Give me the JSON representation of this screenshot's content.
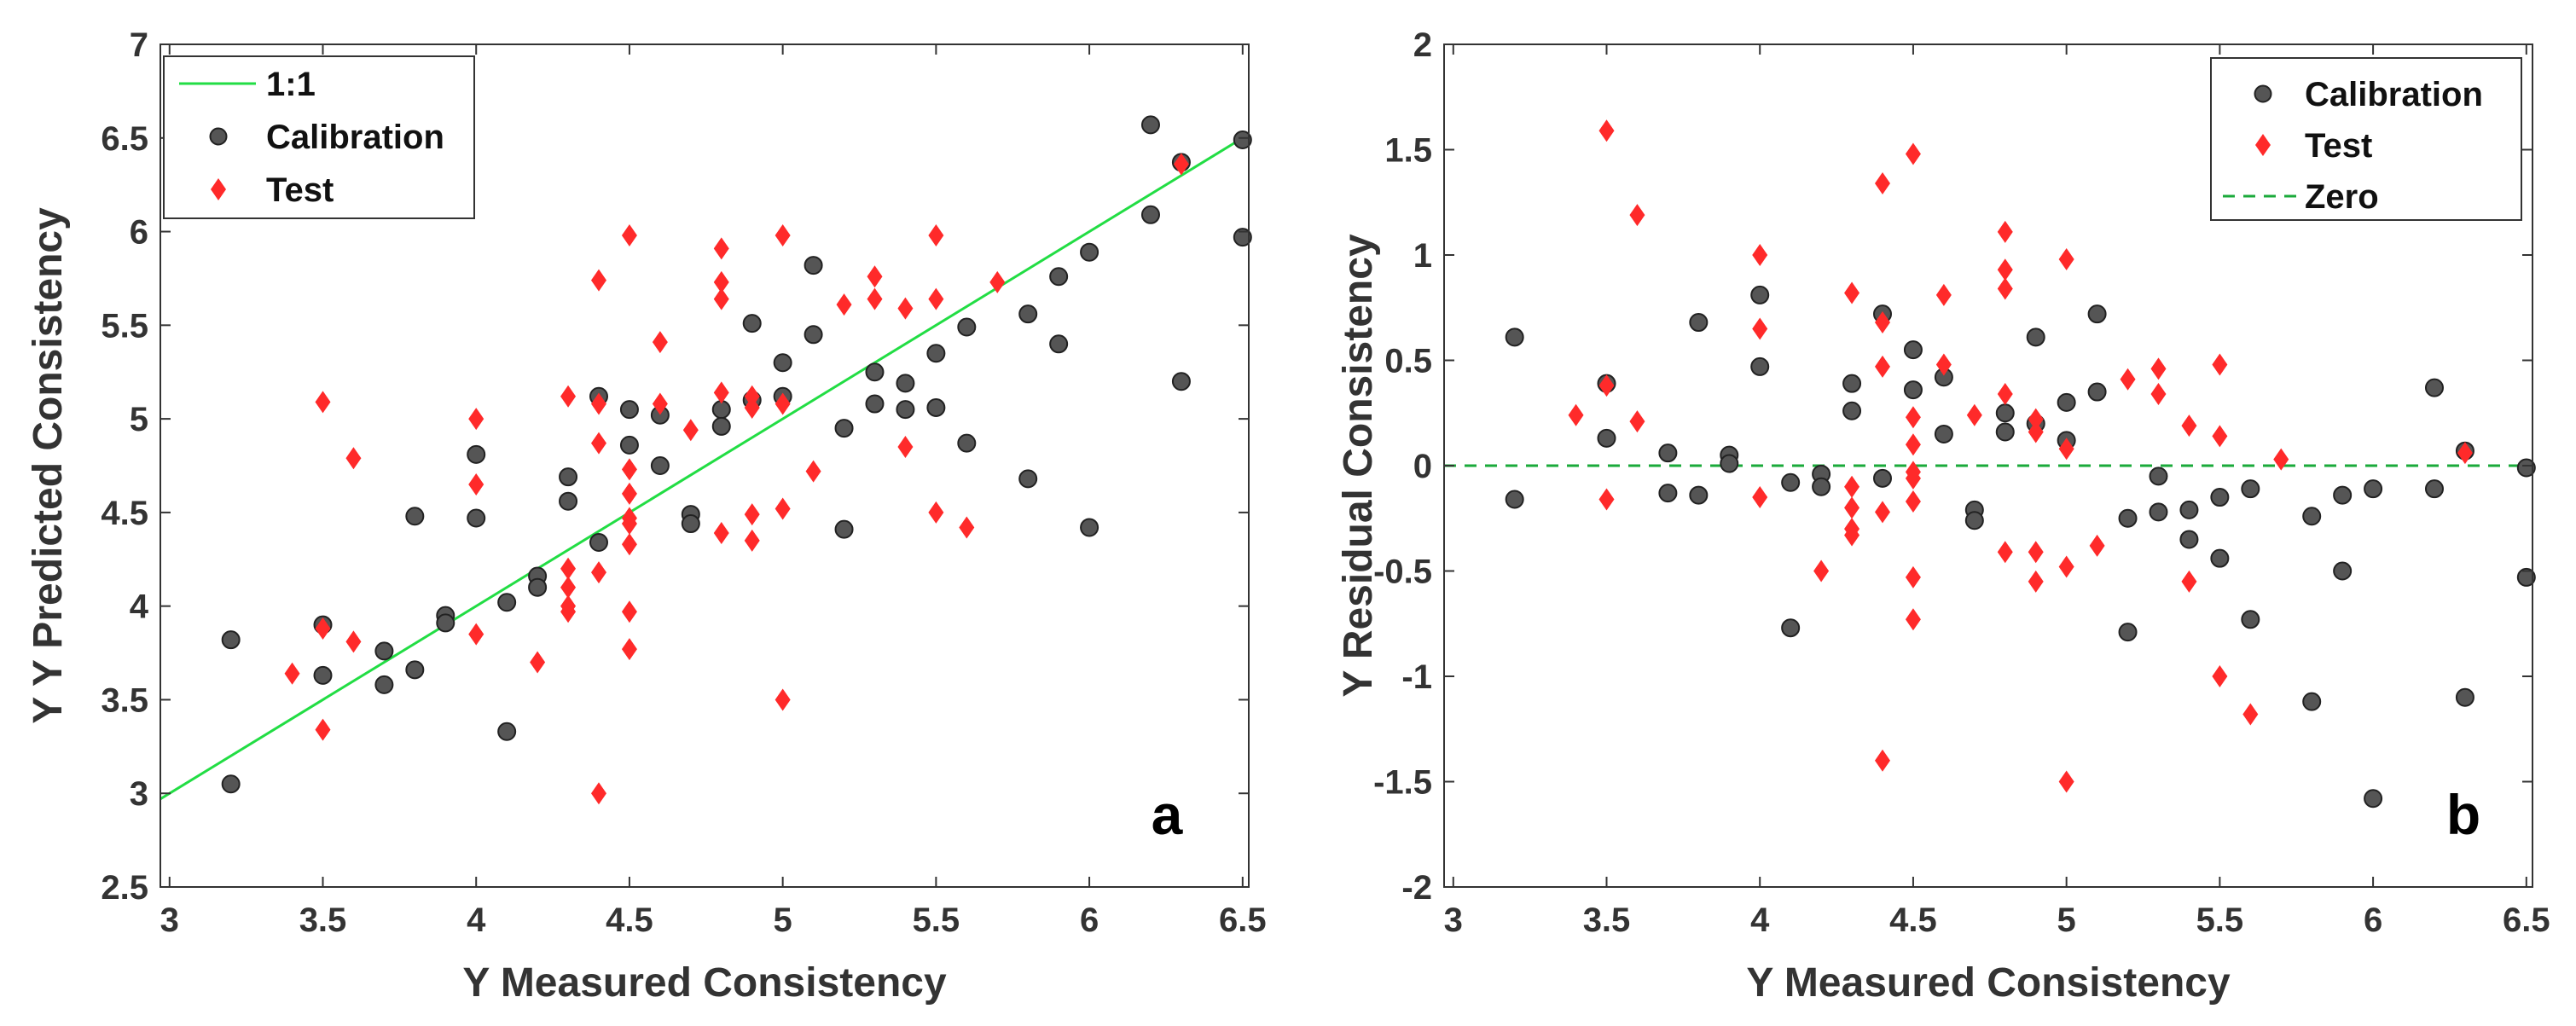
{
  "colors": {
    "calibration": "#555555",
    "calibration_edge": "#222222",
    "test": "#ff2a2a",
    "reference_line": "#22dd44",
    "zero_line": "#1aaa3a",
    "axis": "#333333"
  },
  "chart_data": [
    {
      "type": "scatter",
      "panel_label": "a",
      "xlabel": "Y Measured Consistency",
      "ylabel": "Y Y Predicted Consistency",
      "xlim": [
        2.97,
        6.52
      ],
      "ylim": [
        2.5,
        7
      ],
      "x_ticks": [
        "3",
        "3.5",
        "4",
        "4.5",
        "5",
        "5.5",
        "6",
        "6.5"
      ],
      "y_ticks": [
        "2.5",
        "3",
        "3.5",
        "4",
        "4.5",
        "5",
        "5.5",
        "6",
        "6.5",
        "7"
      ],
      "legend_position": "top-left",
      "legend": {
        "line": "1:1",
        "calibration": "Calibration",
        "test": "Test"
      },
      "reference_line": {
        "name": "1:1",
        "from": [
          2.97,
          2.97
        ],
        "to": [
          6.52,
          6.52
        ]
      },
      "series": [
        {
          "name": "Calibration",
          "points": [
            [
              3.2,
              3.82
            ],
            [
              3.2,
              3.05
            ],
            [
              3.5,
              3.9
            ],
            [
              3.5,
              3.63
            ],
            [
              3.7,
              3.76
            ],
            [
              3.7,
              3.58
            ],
            [
              3.8,
              4.48
            ],
            [
              3.8,
              3.66
            ],
            [
              3.9,
              3.95
            ],
            [
              3.9,
              3.91
            ],
            [
              4.0,
              4.81
            ],
            [
              4.0,
              4.47
            ],
            [
              4.1,
              4.02
            ],
            [
              4.1,
              3.33
            ],
            [
              4.2,
              4.16
            ],
            [
              4.2,
              4.1
            ],
            [
              4.3,
              4.69
            ],
            [
              4.3,
              4.56
            ],
            [
              4.4,
              5.12
            ],
            [
              4.4,
              4.34
            ],
            [
              4.5,
              5.05
            ],
            [
              4.5,
              4.86
            ],
            [
              4.6,
              5.02
            ],
            [
              4.6,
              4.75
            ],
            [
              4.7,
              4.49
            ],
            [
              4.7,
              4.44
            ],
            [
              4.8,
              5.05
            ],
            [
              4.8,
              4.96
            ],
            [
              4.9,
              5.51
            ],
            [
              4.9,
              5.1
            ],
            [
              5.0,
              5.3
            ],
            [
              5.0,
              5.12
            ],
            [
              5.1,
              5.82
            ],
            [
              5.1,
              5.45
            ],
            [
              5.2,
              4.95
            ],
            [
              5.2,
              4.41
            ],
            [
              5.3,
              5.25
            ],
            [
              5.3,
              5.08
            ],
            [
              5.4,
              5.19
            ],
            [
              5.4,
              5.05
            ],
            [
              5.5,
              5.35
            ],
            [
              5.5,
              5.06
            ],
            [
              5.6,
              5.49
            ],
            [
              5.6,
              4.87
            ],
            [
              5.8,
              5.56
            ],
            [
              5.8,
              4.68
            ],
            [
              5.9,
              5.76
            ],
            [
              5.9,
              5.4
            ],
            [
              6.0,
              5.89
            ],
            [
              6.0,
              4.42
            ],
            [
              6.2,
              6.57
            ],
            [
              6.2,
              6.09
            ],
            [
              6.3,
              6.37
            ],
            [
              6.3,
              5.2
            ],
            [
              6.5,
              6.49
            ],
            [
              6.5,
              5.97
            ]
          ]
        },
        {
          "name": "Test",
          "points": [
            [
              3.4,
              3.64
            ],
            [
              3.5,
              5.09
            ],
            [
              3.5,
              3.88
            ],
            [
              3.5,
              3.34
            ],
            [
              3.6,
              4.79
            ],
            [
              3.6,
              3.81
            ],
            [
              4.0,
              5.0
            ],
            [
              4.0,
              4.65
            ],
            [
              4.0,
              3.85
            ],
            [
              4.2,
              3.7
            ],
            [
              4.3,
              5.12
            ],
            [
              4.3,
              4.2
            ],
            [
              4.3,
              4.1
            ],
            [
              4.3,
              4.0
            ],
            [
              4.3,
              3.97
            ],
            [
              4.4,
              5.74
            ],
            [
              4.4,
              5.08
            ],
            [
              4.4,
              4.87
            ],
            [
              4.4,
              4.18
            ],
            [
              4.4,
              3.0
            ],
            [
              4.5,
              5.98
            ],
            [
              4.5,
              4.73
            ],
            [
              4.5,
              4.6
            ],
            [
              4.5,
              4.47
            ],
            [
              4.5,
              4.44
            ],
            [
              4.5,
              4.33
            ],
            [
              4.5,
              3.97
            ],
            [
              4.5,
              3.77
            ],
            [
              4.6,
              5.41
            ],
            [
              4.6,
              5.08
            ],
            [
              4.7,
              4.94
            ],
            [
              4.8,
              5.91
            ],
            [
              4.8,
              5.73
            ],
            [
              4.8,
              5.64
            ],
            [
              4.8,
              5.14
            ],
            [
              4.8,
              4.39
            ],
            [
              4.9,
              5.12
            ],
            [
              4.9,
              5.06
            ],
            [
              4.9,
              4.49
            ],
            [
              4.9,
              4.35
            ],
            [
              5.0,
              5.98
            ],
            [
              5.0,
              5.08
            ],
            [
              5.0,
              4.52
            ],
            [
              5.0,
              3.5
            ],
            [
              5.1,
              4.72
            ],
            [
              5.2,
              5.61
            ],
            [
              5.3,
              5.76
            ],
            [
              5.3,
              5.64
            ],
            [
              5.4,
              5.59
            ],
            [
              5.4,
              4.85
            ],
            [
              5.5,
              5.98
            ],
            [
              5.5,
              5.64
            ],
            [
              5.5,
              4.5
            ],
            [
              5.6,
              4.42
            ],
            [
              5.7,
              5.73
            ],
            [
              6.3,
              6.36
            ]
          ]
        }
      ]
    },
    {
      "type": "scatter",
      "panel_label": "b",
      "xlabel": "Y Measured Consistency",
      "ylabel": "Y Residual Consistency",
      "xlim": [
        2.97,
        6.52
      ],
      "ylim": [
        -2,
        2
      ],
      "x_ticks": [
        "3",
        "3.5",
        "4",
        "4.5",
        "5",
        "5.5",
        "6",
        "6.5"
      ],
      "y_ticks": [
        "-2",
        "-1.5",
        "-1",
        "-0.5",
        "0",
        "0.5",
        "1",
        "1.5",
        "2"
      ],
      "legend_position": "top-right",
      "legend": {
        "calibration": "Calibration",
        "test": "Test",
        "line": "Zero"
      },
      "reference_line": {
        "name": "Zero",
        "y": 0
      },
      "series": [
        {
          "name": "Calibration",
          "points": [
            [
              3.2,
              0.61
            ],
            [
              3.2,
              -0.16
            ],
            [
              3.5,
              0.39
            ],
            [
              3.5,
              0.13
            ],
            [
              3.7,
              0.06
            ],
            [
              3.7,
              -0.13
            ],
            [
              3.8,
              0.68
            ],
            [
              3.8,
              -0.14
            ],
            [
              3.9,
              0.05
            ],
            [
              3.9,
              0.01
            ],
            [
              4.0,
              0.81
            ],
            [
              4.0,
              0.47
            ],
            [
              4.1,
              -0.08
            ],
            [
              4.1,
              -0.77
            ],
            [
              4.2,
              -0.04
            ],
            [
              4.2,
              -0.1
            ],
            [
              4.3,
              0.39
            ],
            [
              4.3,
              0.26
            ],
            [
              4.4,
              0.72
            ],
            [
              4.4,
              -0.06
            ],
            [
              4.5,
              0.55
            ],
            [
              4.5,
              0.36
            ],
            [
              4.6,
              0.42
            ],
            [
              4.6,
              0.15
            ],
            [
              4.7,
              -0.21
            ],
            [
              4.7,
              -0.26
            ],
            [
              4.8,
              0.25
            ],
            [
              4.8,
              0.16
            ],
            [
              4.9,
              0.61
            ],
            [
              4.9,
              0.2
            ],
            [
              5.0,
              0.3
            ],
            [
              5.0,
              0.12
            ],
            [
              5.1,
              0.72
            ],
            [
              5.1,
              0.35
            ],
            [
              5.2,
              -0.25
            ],
            [
              5.2,
              -0.79
            ],
            [
              5.3,
              -0.05
            ],
            [
              5.3,
              -0.22
            ],
            [
              5.4,
              -0.21
            ],
            [
              5.4,
              -0.35
            ],
            [
              5.5,
              -0.15
            ],
            [
              5.5,
              -0.44
            ],
            [
              5.6,
              -0.11
            ],
            [
              5.6,
              -0.73
            ],
            [
              5.8,
              -0.24
            ],
            [
              5.8,
              -1.12
            ],
            [
              5.9,
              -0.14
            ],
            [
              5.9,
              -0.5
            ],
            [
              6.0,
              -0.11
            ],
            [
              6.0,
              -1.58
            ],
            [
              6.2,
              0.37
            ],
            [
              6.2,
              -0.11
            ],
            [
              6.3,
              0.07
            ],
            [
              6.3,
              -1.1
            ],
            [
              6.5,
              -0.01
            ],
            [
              6.5,
              -0.53
            ]
          ]
        },
        {
          "name": "Test",
          "points": [
            [
              3.4,
              0.24
            ],
            [
              3.5,
              1.59
            ],
            [
              3.5,
              0.38
            ],
            [
              3.5,
              -0.16
            ],
            [
              3.6,
              1.19
            ],
            [
              3.6,
              0.21
            ],
            [
              4.0,
              1.0
            ],
            [
              4.0,
              0.65
            ],
            [
              4.0,
              -0.15
            ],
            [
              4.2,
              -0.5
            ],
            [
              4.3,
              0.82
            ],
            [
              4.3,
              -0.1
            ],
            [
              4.3,
              -0.2
            ],
            [
              4.3,
              -0.3
            ],
            [
              4.3,
              -0.33
            ],
            [
              4.4,
              1.34
            ],
            [
              4.4,
              0.68
            ],
            [
              4.4,
              0.47
            ],
            [
              4.4,
              -0.22
            ],
            [
              4.4,
              -1.4
            ],
            [
              4.5,
              1.48
            ],
            [
              4.5,
              0.23
            ],
            [
              4.5,
              0.1
            ],
            [
              4.5,
              -0.03
            ],
            [
              4.5,
              -0.06
            ],
            [
              4.5,
              -0.17
            ],
            [
              4.5,
              -0.53
            ],
            [
              4.5,
              -0.73
            ],
            [
              4.6,
              0.81
            ],
            [
              4.6,
              0.48
            ],
            [
              4.7,
              0.24
            ],
            [
              4.8,
              1.11
            ],
            [
              4.8,
              0.93
            ],
            [
              4.8,
              0.84
            ],
            [
              4.8,
              0.34
            ],
            [
              4.8,
              -0.41
            ],
            [
              4.9,
              0.22
            ],
            [
              4.9,
              0.16
            ],
            [
              4.9,
              -0.41
            ],
            [
              4.9,
              -0.55
            ],
            [
              5.0,
              0.98
            ],
            [
              5.0,
              0.08
            ],
            [
              5.0,
              -0.48
            ],
            [
              5.0,
              -1.5
            ],
            [
              5.1,
              -0.38
            ],
            [
              5.2,
              0.41
            ],
            [
              5.3,
              0.46
            ],
            [
              5.3,
              0.34
            ],
            [
              5.4,
              0.19
            ],
            [
              5.4,
              -0.55
            ],
            [
              5.5,
              0.48
            ],
            [
              5.5,
              0.14
            ],
            [
              5.5,
              -1.0
            ],
            [
              5.6,
              -1.18
            ],
            [
              5.7,
              0.03
            ],
            [
              6.3,
              0.06
            ]
          ]
        }
      ]
    }
  ]
}
